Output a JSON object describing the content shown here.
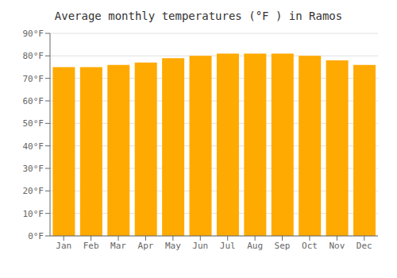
{
  "chart_data": {
    "type": "bar",
    "title": "Average monthly temperatures (°F ) in Ramos",
    "categories": [
      "Jan",
      "Feb",
      "Mar",
      "Apr",
      "May",
      "Jun",
      "Jul",
      "Aug",
      "Sep",
      "Oct",
      "Nov",
      "Dec"
    ],
    "values": [
      75,
      75,
      76,
      77,
      79,
      80,
      81,
      81,
      81,
      80,
      78,
      76
    ],
    "color": "#FFAA00",
    "ylim": [
      0,
      90
    ],
    "yticks": [
      {
        "value": 0,
        "label": "0°F"
      },
      {
        "value": 10,
        "label": "10°F"
      },
      {
        "value": 20,
        "label": "20°F"
      },
      {
        "value": 30,
        "label": "30°F"
      },
      {
        "value": 40,
        "label": "40°F"
      },
      {
        "value": 50,
        "label": "50°F"
      },
      {
        "value": 60,
        "label": "60°F"
      },
      {
        "value": 70,
        "label": "70°F"
      },
      {
        "value": 80,
        "label": "80°F"
      },
      {
        "value": 90,
        "label": "90°F"
      }
    ],
    "grid": true
  }
}
